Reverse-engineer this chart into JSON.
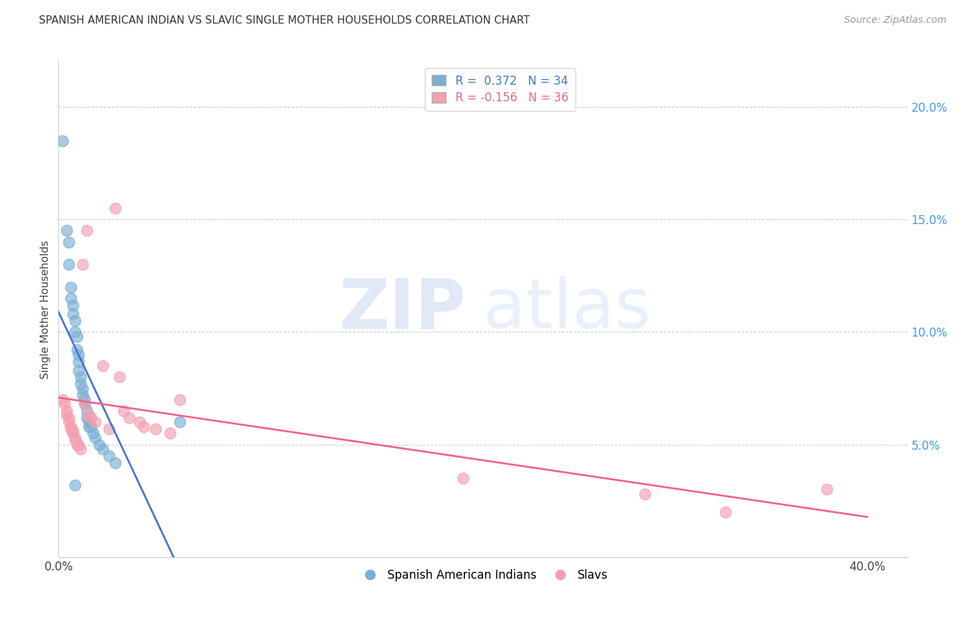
{
  "title": "SPANISH AMERICAN INDIAN VS SLAVIC SINGLE MOTHER HOUSEHOLDS CORRELATION CHART",
  "source": "Source: ZipAtlas.com",
  "ylabel": "Single Mother Households",
  "xlim": [
    0.0,
    0.42
  ],
  "ylim": [
    0.0,
    0.22
  ],
  "x_ticks": [
    0.0,
    0.1,
    0.2,
    0.3,
    0.4
  ],
  "x_tick_labels": [
    "0.0%",
    "",
    "",
    "",
    "40.0%"
  ],
  "y_ticks_right": [
    0.05,
    0.1,
    0.15,
    0.2
  ],
  "y_tick_labels_right": [
    "5.0%",
    "10.0%",
    "15.0%",
    "20.0%"
  ],
  "grid_color": "#cccccc",
  "background_color": "#ffffff",
  "legend_R1": "0.372",
  "legend_N1": "34",
  "legend_R2": "-0.156",
  "legend_N2": "36",
  "label1": "Spanish American Indians",
  "label2": "Slavs",
  "color_blue": "#7bafd4",
  "color_pink": "#f4a0b0",
  "line_blue": "#4477cc",
  "line_pink": "#ee6688",
  "blue_x": [
    0.002,
    0.004,
    0.005,
    0.005,
    0.006,
    0.006,
    0.007,
    0.007,
    0.008,
    0.008,
    0.009,
    0.009,
    0.01,
    0.01,
    0.01,
    0.011,
    0.011,
    0.012,
    0.012,
    0.013,
    0.013,
    0.014,
    0.014,
    0.015,
    0.015,
    0.016,
    0.017,
    0.018,
    0.02,
    0.022,
    0.025,
    0.028,
    0.06,
    0.008
  ],
  "blue_y": [
    0.185,
    0.145,
    0.14,
    0.13,
    0.12,
    0.115,
    0.112,
    0.108,
    0.105,
    0.1,
    0.098,
    0.092,
    0.09,
    0.087,
    0.083,
    0.08,
    0.077,
    0.075,
    0.072,
    0.07,
    0.068,
    0.065,
    0.062,
    0.06,
    0.058,
    0.058,
    0.055,
    0.053,
    0.05,
    0.048,
    0.045,
    0.042,
    0.06,
    0.032
  ],
  "pink_x": [
    0.002,
    0.003,
    0.004,
    0.004,
    0.005,
    0.005,
    0.006,
    0.006,
    0.007,
    0.007,
    0.008,
    0.008,
    0.009,
    0.01,
    0.011,
    0.012,
    0.013,
    0.014,
    0.015,
    0.016,
    0.018,
    0.022,
    0.025,
    0.028,
    0.03,
    0.032,
    0.035,
    0.04,
    0.042,
    0.048,
    0.055,
    0.06,
    0.2,
    0.29,
    0.33,
    0.38
  ],
  "pink_y": [
    0.07,
    0.068,
    0.065,
    0.063,
    0.062,
    0.06,
    0.058,
    0.057,
    0.056,
    0.055,
    0.053,
    0.052,
    0.05,
    0.05,
    0.048,
    0.13,
    0.068,
    0.145,
    0.063,
    0.062,
    0.06,
    0.085,
    0.057,
    0.155,
    0.08,
    0.065,
    0.062,
    0.06,
    0.058,
    0.057,
    0.055,
    0.07,
    0.035,
    0.028,
    0.02,
    0.03
  ]
}
